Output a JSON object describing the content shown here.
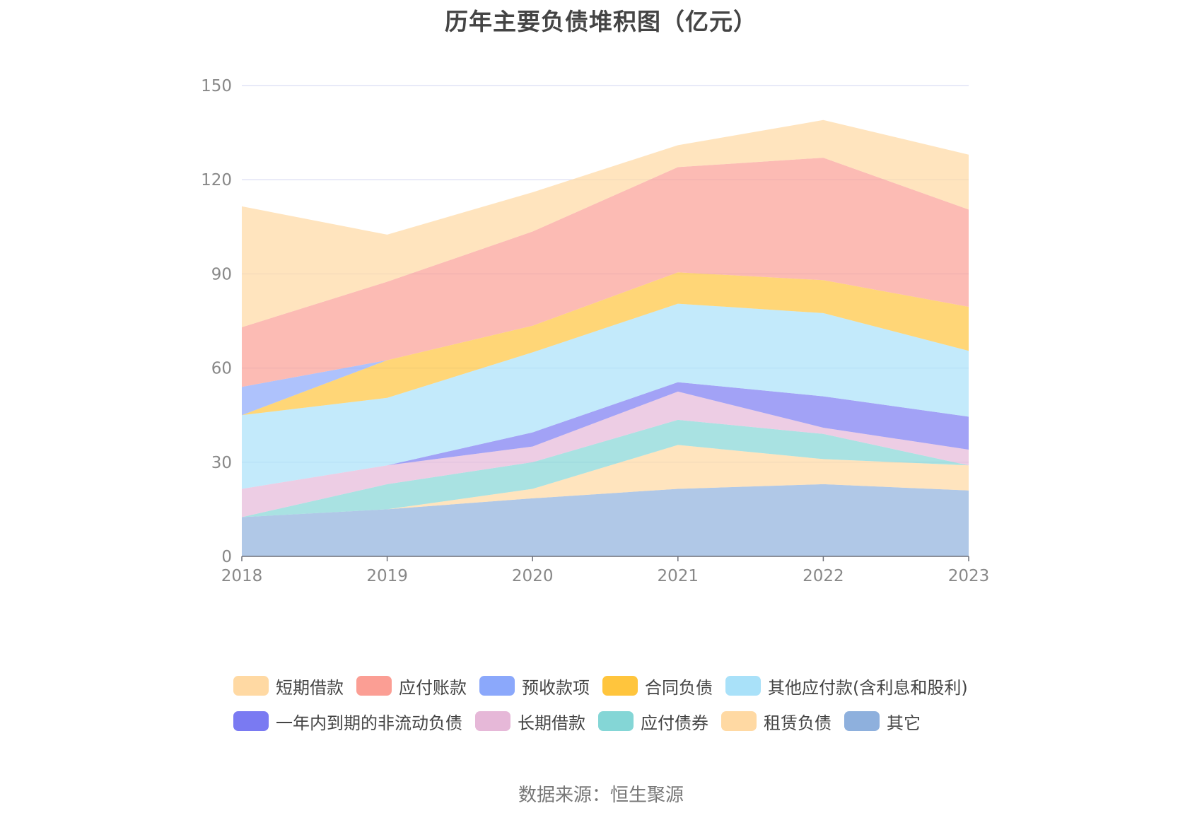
{
  "chart_data": {
    "type": "area",
    "stacked": true,
    "title": "历年主要负债堆积图（亿元）",
    "x": [
      "2018",
      "2019",
      "2020",
      "2021",
      "2022",
      "2023"
    ],
    "ylim": [
      0,
      150
    ],
    "yticks": [
      0,
      30,
      60,
      90,
      120,
      150
    ],
    "grid": true,
    "legend_position": "bottom",
    "series": [
      {
        "name": "其它",
        "color": "#8eb0dd",
        "values": [
          12.5,
          15.0,
          18.5,
          21.5,
          23.0,
          21.0
        ]
      },
      {
        "name": "租赁负债",
        "color": "#ffd9a3",
        "values": [
          0,
          0,
          3.0,
          14.0,
          8.0,
          8.0
        ]
      },
      {
        "name": "应付债券",
        "color": "#84d6d6",
        "values": [
          0,
          8.0,
          8.5,
          8.0,
          8.0,
          0
        ]
      },
      {
        "name": "长期借款",
        "color": "#e6b8d8",
        "values": [
          9.0,
          6.0,
          5.0,
          9.0,
          2.0,
          5.0
        ]
      },
      {
        "name": "一年内到期的非流动负债",
        "color": "#7a7af2",
        "values": [
          0,
          0,
          4.5,
          3.0,
          10.0,
          10.5
        ]
      },
      {
        "name": "其他应付款(含利息和股利)",
        "color": "#a9e1f9",
        "values": [
          23.5,
          21.5,
          25.5,
          25.0,
          26.5,
          21.0
        ]
      },
      {
        "name": "合同负债",
        "color": "#ffc53d",
        "values": [
          0,
          12.0,
          8.5,
          10.0,
          10.5,
          14.0
        ]
      },
      {
        "name": "预收款项",
        "color": "#8ba8fb",
        "values": [
          9.0,
          0,
          0,
          0,
          0,
          0
        ]
      },
      {
        "name": "应付账款",
        "color": "#fb9e94",
        "values": [
          19.0,
          25.0,
          30.0,
          33.5,
          39.0,
          31.0
        ]
      },
      {
        "name": "短期借款",
        "color": "#ffd9a3",
        "values": [
          38.5,
          15.0,
          12.5,
          7.0,
          12.0,
          17.5
        ]
      }
    ]
  },
  "legend_rows": [
    [
      {
        "name": "短期借款",
        "color": "#ffd9a3"
      },
      {
        "name": "应付账款",
        "color": "#fb9e94"
      },
      {
        "name": "预收款项",
        "color": "#8ba8fb"
      },
      {
        "name": "合同负债",
        "color": "#ffc53d"
      },
      {
        "name": "其他应付款(含利息和股利)",
        "color": "#a9e1f9"
      }
    ],
    [
      {
        "name": "一年内到期的非流动负债",
        "color": "#7a7af2"
      },
      {
        "name": "长期借款",
        "color": "#e6b8d8"
      },
      {
        "name": "应付债券",
        "color": "#84d6d6"
      },
      {
        "name": "租赁负债",
        "color": "#ffd9a3"
      },
      {
        "name": "其它",
        "color": "#8eb0dd"
      }
    ]
  ],
  "source": "数据来源：恒生聚源"
}
